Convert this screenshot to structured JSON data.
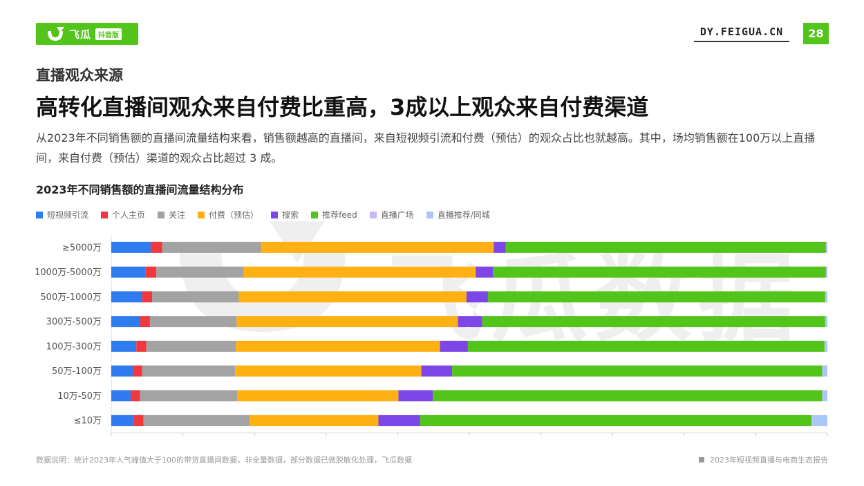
{
  "header": {
    "logo_text": "飞瓜",
    "logo_tag": "抖音版",
    "site": "DY.FEIGUA.CN",
    "page_number": "28",
    "accent_color": "#52c41a"
  },
  "section_title": "直播观众来源",
  "headline": "高转化直播间观众来自付费比重高，3成以上观众来自付费渠道",
  "description": "从2023年不同销售额的直播间流量结构来看，销售额越高的直播间，来自短视频引流和付费（预估）的观众占比也就越高。其中，场均销售额在100万以上直播间，来自付费（预估）渠道的观众占比超过 3 成。",
  "watermark": "飞瓜数据",
  "footer": {
    "note": "数据说明：统计2023年人气峰值大于100的带货直播间数据，非全量数据，部分数据已做脱敏化处理，飞瓜数据",
    "report": "2023年短视频直播与电商生态报告"
  },
  "chart_data": {
    "type": "bar",
    "orientation": "horizontal",
    "stacked": true,
    "normalized": true,
    "title": "2023年不同销售额的直播间流量结构分布",
    "xlim": [
      0,
      100
    ],
    "legend_position": "top-left",
    "grid": false,
    "categories": [
      "≥5000万",
      "1000万-5000万",
      "500万-1000万",
      "300万-500万",
      "100万-300万",
      "50万-100万",
      "10万-50万",
      "≤10万"
    ],
    "series": [
      {
        "name": "短视频引流",
        "color": "#2f7bf0",
        "values": [
          5.5,
          4.8,
          4.3,
          4.0,
          3.5,
          3.0,
          2.7,
          3.1
        ]
      },
      {
        "name": "个人主页",
        "color": "#f0383e",
        "values": [
          1.6,
          1.5,
          1.4,
          1.4,
          1.4,
          1.3,
          1.3,
          1.4
        ]
      },
      {
        "name": "关注",
        "color": "#a3a3a3",
        "values": [
          13.8,
          12.2,
          12.1,
          12.1,
          12.5,
          13.0,
          13.6,
          14.8
        ]
      },
      {
        "name": "付费（预估）",
        "color": "#ffb114",
        "values": [
          32.5,
          32.4,
          31.8,
          30.9,
          28.5,
          26.0,
          22.5,
          18.0
        ]
      },
      {
        "name": "搜索",
        "color": "#7d47e8",
        "values": [
          1.7,
          2.4,
          3.0,
          3.4,
          3.9,
          4.3,
          4.8,
          5.8
        ]
      },
      {
        "name": "推荐feed",
        "color": "#52c41a",
        "values": [
          44.7,
          46.5,
          47.1,
          47.9,
          49.8,
          51.7,
          54.4,
          54.7
        ]
      },
      {
        "name": "直播广场",
        "color": "#c9b6f5",
        "values": [
          0.1,
          0.1,
          0.1,
          0.1,
          0.1,
          0.1,
          0.1,
          0.1
        ]
      },
      {
        "name": "直播推荐/同城",
        "color": "#a9c8f8",
        "values": [
          0.1,
          0.1,
          0.2,
          0.2,
          0.3,
          0.6,
          0.6,
          2.1
        ]
      }
    ]
  }
}
